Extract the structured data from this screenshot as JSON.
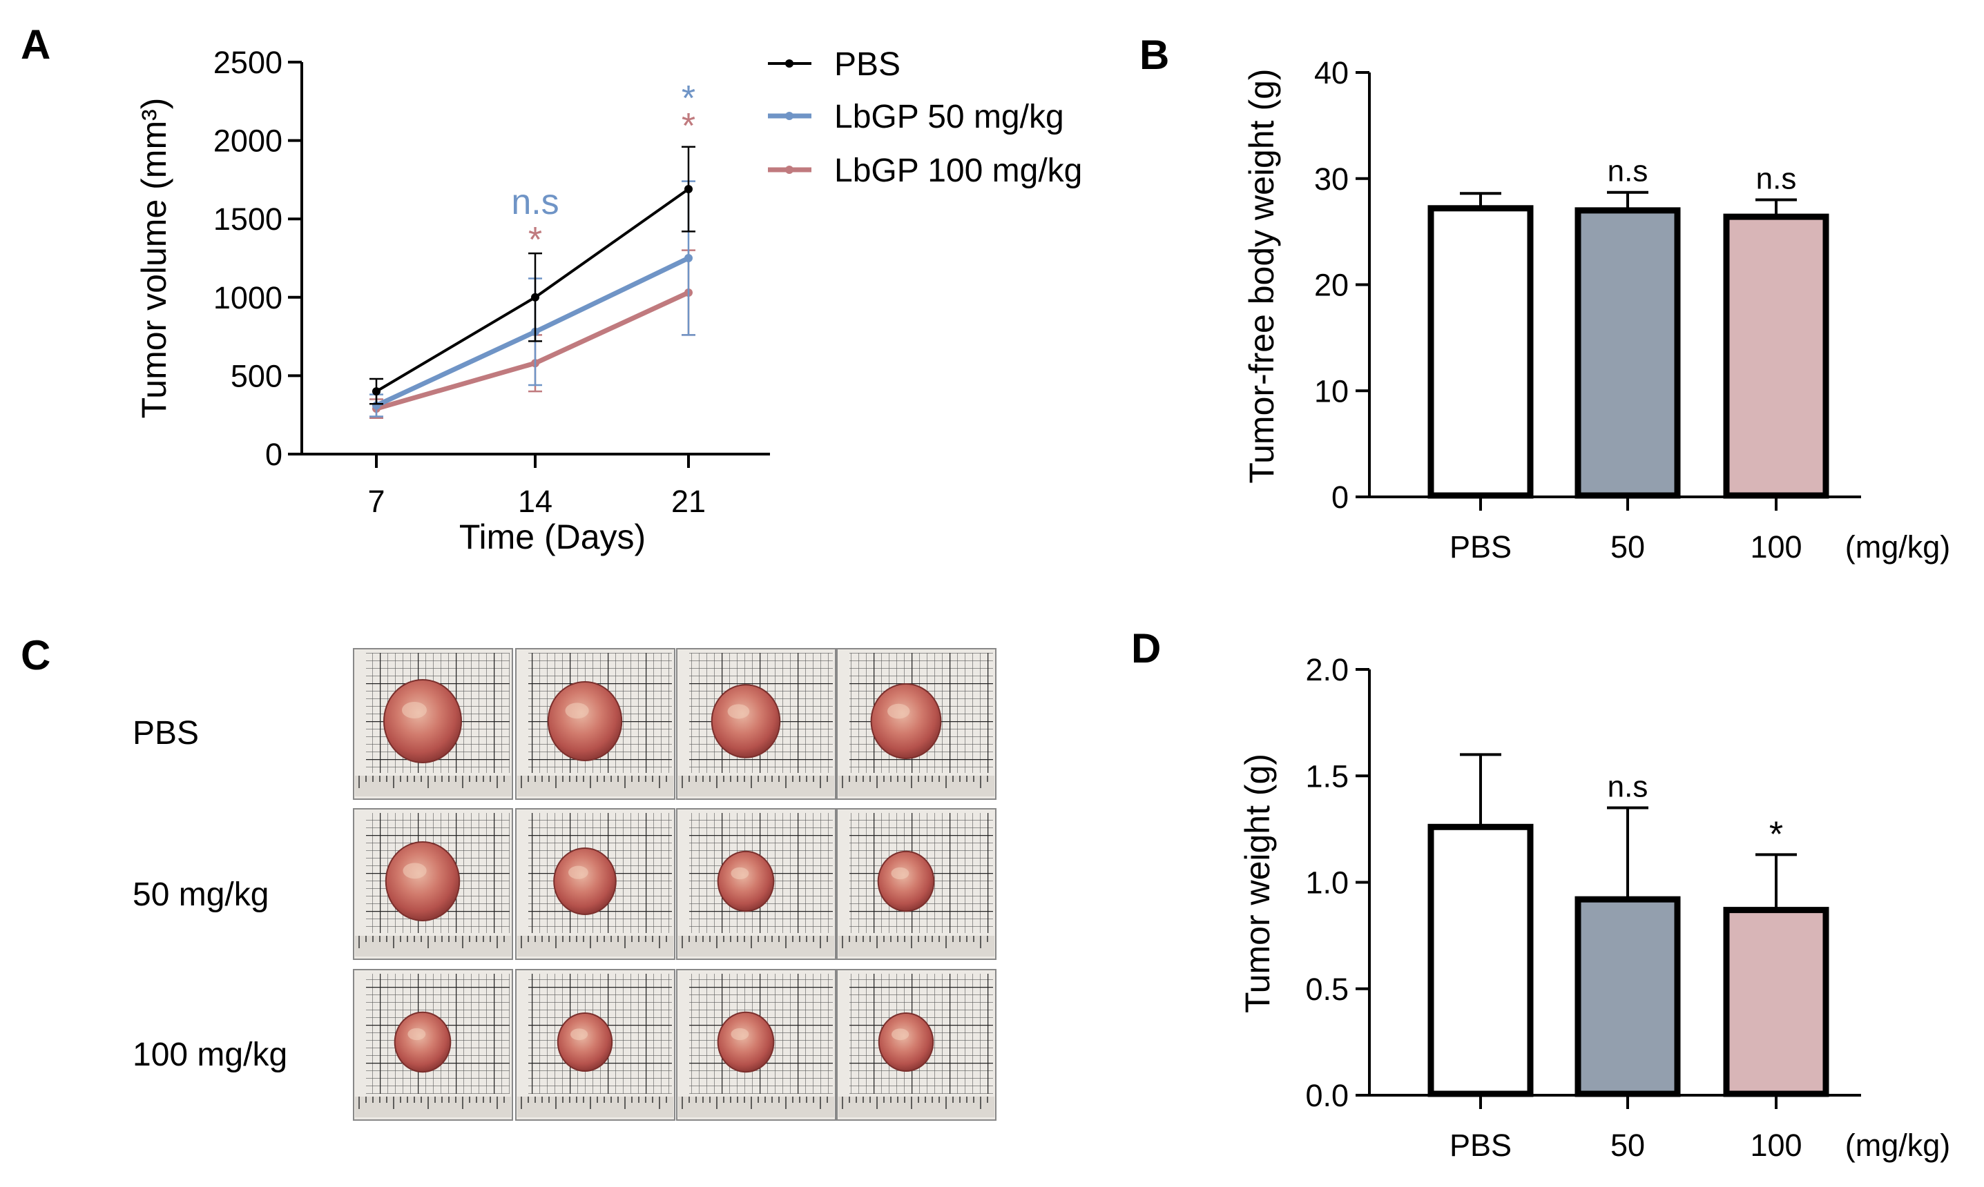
{
  "colors": {
    "pbs": "#000000",
    "lbgp50": "#6f94c6",
    "lbgp100": "#c07a7e",
    "bar_pbs": "#ffffff",
    "bar_50": "#939fae",
    "bar_100": "#d8b5b7"
  },
  "chart_data": [
    {
      "id": "A",
      "panel_label": "A",
      "type": "line",
      "xlabel": "Time (Days)",
      "ylabel": "Tumor volume (mm³)",
      "x": [
        7,
        14,
        21
      ],
      "x_tick_labels": [
        "7",
        "14",
        "21"
      ],
      "y_ticks": [
        0,
        500,
        1000,
        1500,
        2000,
        2500
      ],
      "y_tick_labels": [
        "0",
        "500",
        "1000",
        "1500",
        "2000",
        "2500"
      ],
      "ylim": [
        0,
        2500
      ],
      "series": [
        {
          "name": "PBS",
          "color_key": "pbs",
          "values": [
            400,
            1000,
            1690
          ],
          "err": [
            80,
            280,
            270
          ]
        },
        {
          "name": "LbGP 50 mg/kg",
          "color_key": "lbgp50",
          "values": [
            310,
            780,
            1250
          ],
          "err": [
            70,
            340,
            490
          ]
        },
        {
          "name": "LbGP 100 mg/kg",
          "color_key": "lbgp100",
          "values": [
            290,
            580,
            1030
          ],
          "err": [
            60,
            180,
            270
          ]
        }
      ],
      "annotations": [
        {
          "x": 14,
          "text": "n.s",
          "color_key": "lbgp50"
        },
        {
          "x": 14,
          "text": "*",
          "color_key": "lbgp100"
        },
        {
          "x": 21,
          "text": "*",
          "color_key": "lbgp50"
        },
        {
          "x": 21,
          "text": "*",
          "color_key": "lbgp100"
        }
      ],
      "legend_position": "top-right"
    },
    {
      "id": "B",
      "panel_label": "B",
      "type": "bar",
      "categories": [
        "PBS",
        "50",
        "100"
      ],
      "unit_label": "(mg/kg)",
      "ylabel": "Tumor-free body weight (g)",
      "y_ticks": [
        0,
        10,
        20,
        30,
        40
      ],
      "y_tick_labels": [
        "0",
        "10",
        "20",
        "30",
        "40"
      ],
      "ylim": [
        0,
        40
      ],
      "values": [
        27.2,
        27.0,
        26.4
      ],
      "err": [
        1.4,
        1.7,
        1.6
      ],
      "bar_color_keys": [
        "bar_pbs",
        "bar_50",
        "bar_100"
      ],
      "annotations": [
        "",
        "n.s",
        "n.s"
      ]
    },
    {
      "id": "D",
      "panel_label": "D",
      "type": "bar",
      "categories": [
        "PBS",
        "50",
        "100"
      ],
      "unit_label": "(mg/kg)",
      "ylabel": "Tumor weight (g)",
      "y_ticks": [
        0.0,
        0.5,
        1.0,
        1.5,
        2.0
      ],
      "y_tick_labels": [
        "0.0",
        "0.5",
        "1.0",
        "1.5",
        "2.0"
      ],
      "ylim": [
        0,
        2.0
      ],
      "values": [
        1.26,
        0.92,
        0.87
      ],
      "err": [
        0.34,
        0.43,
        0.26
      ],
      "bar_color_keys": [
        "bar_pbs",
        "bar_50",
        "bar_100"
      ],
      "annotations": [
        "",
        "n.s",
        "*"
      ]
    }
  ],
  "panel_c": {
    "panel_label": "C",
    "row_labels": [
      "PBS",
      "50 mg/kg",
      "100 mg/kg"
    ],
    "tumor_size_scale": [
      [
        1.0,
        0.95,
        0.88,
        0.9
      ],
      [
        0.95,
        0.8,
        0.72,
        0.72
      ],
      [
        0.72,
        0.7,
        0.72,
        0.7
      ]
    ]
  }
}
